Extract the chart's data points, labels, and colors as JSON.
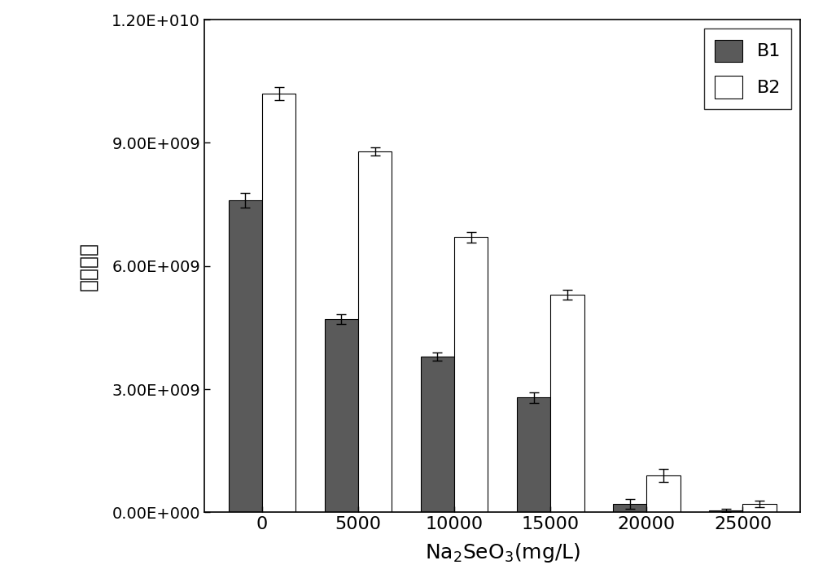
{
  "categories": [
    "0",
    "5000",
    "10000",
    "15000",
    "20000",
    "25000"
  ],
  "B1_values": [
    7600000000.0,
    4700000000.0,
    3800000000.0,
    2800000000.0,
    200000000.0,
    45000000.0
  ],
  "B2_values": [
    10200000000.0,
    8800000000.0,
    6700000000.0,
    5300000000.0,
    900000000.0,
    200000000.0
  ],
  "B1_errors": [
    180000000.0,
    120000000.0,
    100000000.0,
    130000000.0,
    120000000.0,
    40000000.0
  ],
  "B2_errors": [
    150000000.0,
    100000000.0,
    130000000.0,
    120000000.0,
    150000000.0,
    80000000.0
  ],
  "B1_color": "#5a5a5a",
  "B2_color": "#ffffff",
  "bar_edgecolor": "#000000",
  "bar_width": 0.35,
  "ylim": [
    0,
    12000000000.0
  ],
  "yticks": [
    0,
    3000000000.0,
    6000000000.0,
    9000000000.0,
    12000000000.0
  ],
  "ytick_labels": [
    "0.00E+000",
    "3.00E+009",
    "6.00E+009",
    "9.00E+009",
    "1.20E+010"
  ],
  "xlabel": "Na$_2$SeO$_3$(mg/L)",
  "ylabel": "细胞个数",
  "legend_labels": [
    "B1",
    "B2"
  ],
  "figure_facecolor": "#ffffff",
  "axes_facecolor": "#ffffff"
}
